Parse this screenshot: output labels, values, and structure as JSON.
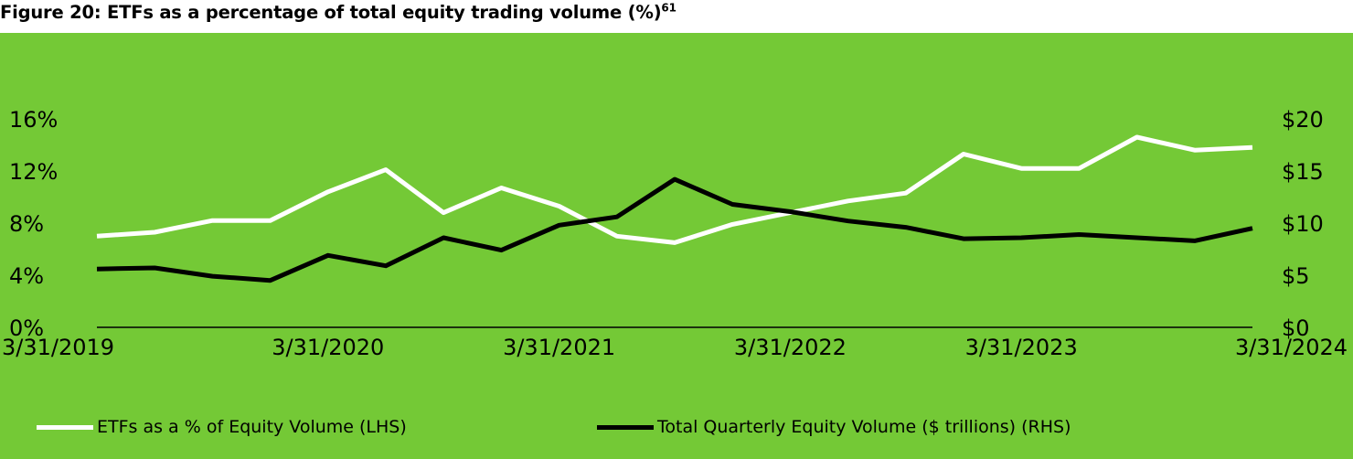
{
  "figure": {
    "title": "Figure 20: ETFs as a percentage of total equity trading volume (%)",
    "footnote": "61",
    "background_color": "#74C936"
  },
  "chart_data": {
    "type": "line",
    "categories": [
      "3/31/2019",
      "6/30/2019",
      "9/30/2019",
      "12/31/2019",
      "3/31/2020",
      "6/30/2020",
      "9/30/2020",
      "12/31/2020",
      "3/31/2021",
      "6/30/2021",
      "9/30/2021",
      "12/31/2021",
      "3/31/2022",
      "6/30/2022",
      "9/30/2022",
      "12/31/2022",
      "3/31/2023",
      "6/30/2023",
      "9/30/2023",
      "12/31/2023",
      "3/31/2024"
    ],
    "x_tick_labels": [
      "3/31/2019",
      "3/31/2020",
      "3/31/2021",
      "3/31/2022",
      "3/31/2023",
      "3/31/2024"
    ],
    "y_left": {
      "ticks": [
        "0%",
        "4%",
        "8%",
        "12%",
        "16%"
      ],
      "range": [
        0,
        16
      ]
    },
    "y_right": {
      "ticks": [
        "$0",
        "$5",
        "$10",
        "$15",
        "$20"
      ],
      "range": [
        0,
        20
      ]
    },
    "series": [
      {
        "name": "ETFs as a % of Equity Volume (LHS)",
        "axis": "left",
        "color": "#FFFFFF",
        "values": [
          7.0,
          7.3,
          8.2,
          8.2,
          10.4,
          12.1,
          8.8,
          10.7,
          9.3,
          7.0,
          6.5,
          7.9,
          8.8,
          9.7,
          10.3,
          13.3,
          12.2,
          12.2,
          14.6,
          13.6,
          13.8
        ]
      },
      {
        "name": "Total Quarterly Equity Volume ($ trillions) (RHS)",
        "axis": "right",
        "color": "#000000",
        "values": [
          5.6,
          5.7,
          4.9,
          4.5,
          6.9,
          5.9,
          8.6,
          7.4,
          9.8,
          10.6,
          14.2,
          11.8,
          11.1,
          10.2,
          9.6,
          8.5,
          8.6,
          8.9,
          8.6,
          8.3,
          9.5
        ]
      }
    ]
  }
}
